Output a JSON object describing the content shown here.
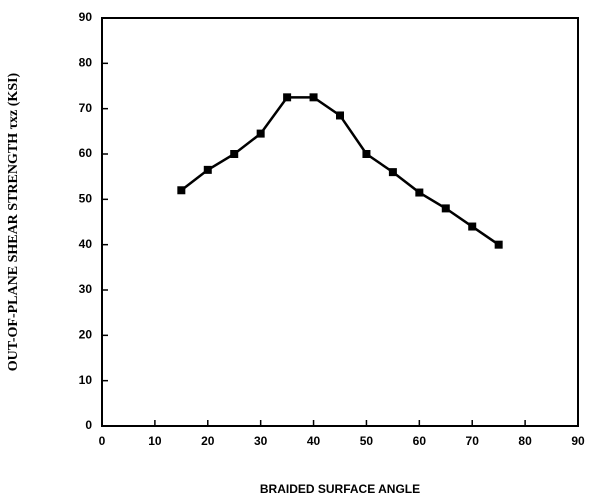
{
  "chart_data": {
    "type": "line",
    "xlabel": "BRAIDED SURFACE ANGLE",
    "ylabel": "OUT-OF-PLANE SHEAR STRENGTH τxz (KSI)",
    "x": [
      15,
      20,
      25,
      30,
      35,
      40,
      45,
      50,
      55,
      60,
      65,
      70,
      75
    ],
    "series": [
      {
        "color": "#000000",
        "values": [
          52,
          56.5,
          60,
          64.5,
          72.5,
          72.5,
          68.5,
          60,
          56,
          51.5,
          48,
          44,
          40
        ]
      }
    ],
    "xlim": [
      0,
      90
    ],
    "xticks": [
      0,
      10,
      20,
      30,
      40,
      50,
      60,
      70,
      80,
      90
    ],
    "ylim": [
      0,
      90
    ],
    "yticks": [
      0,
      10,
      20,
      30,
      40,
      50,
      60,
      70,
      80,
      90
    ],
    "grid": false
  }
}
